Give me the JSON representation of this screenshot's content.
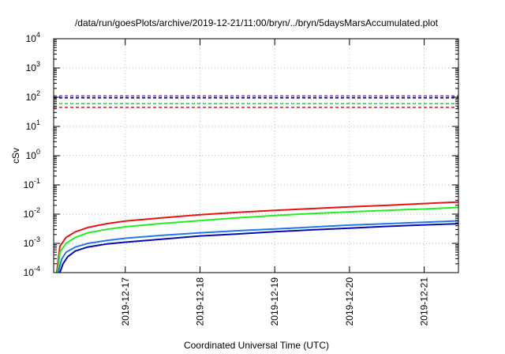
{
  "chart_data": {
    "type": "line",
    "title": "/data/run/goesPlots/archive/2019-12-21/11:00/bryn/../bryn/5daysMarsAccumulated.plot",
    "xlabel": "Coordinated Universal Time (UTC)",
    "ylabel": "cSv",
    "yscale": "log",
    "ylim": [
      0.0001,
      10000
    ],
    "xlim": [
      "2019-12-16T01:00",
      "2019-12-21T11:00"
    ],
    "grid": true,
    "y_tick_labels": [
      {
        "base": "10",
        "exp": "-4"
      },
      {
        "base": "10",
        "exp": "-3"
      },
      {
        "base": "10",
        "exp": "-2"
      },
      {
        "base": "10",
        "exp": "-1"
      },
      {
        "base": "10",
        "exp": "0"
      },
      {
        "base": "10",
        "exp": "1"
      },
      {
        "base": "10",
        "exp": "2"
      },
      {
        "base": "10",
        "exp": "3"
      },
      {
        "base": "10",
        "exp": "4"
      }
    ],
    "x_tick_labels": [
      "2019-12-17",
      "2019-12-18",
      "2019-12-19",
      "2019-12-20",
      "2019-12-21"
    ],
    "x_tick_values": [
      "2019-12-17T00:00",
      "2019-12-18T00:00",
      "2019-12-19T00:00",
      "2019-12-20T00:00",
      "2019-12-21T00:00"
    ],
    "threshold_lines": [
      {
        "color": "#8a2be2",
        "value": 110
      },
      {
        "color": "#0000cd",
        "value": 95
      },
      {
        "color": "#22dd22",
        "value": 60
      },
      {
        "color": "#ee2222",
        "value": 45
      }
    ],
    "series": [
      {
        "color": "#ee1111",
        "x": [
          "2019-12-16T02:00",
          "2019-12-16T03:00",
          "2019-12-16T05:00",
          "2019-12-16T08:00",
          "2019-12-16T12:00",
          "2019-12-16T18:00",
          "2019-12-17T00:00",
          "2019-12-17T12:00",
          "2019-12-18T00:00",
          "2019-12-18T12:00",
          "2019-12-19T00:00",
          "2019-12-19T12:00",
          "2019-12-20T00:00",
          "2019-12-20T12:00",
          "2019-12-21T00:00",
          "2019-12-21T11:00"
        ],
        "values": [
          0.0001,
          0.0008,
          0.0016,
          0.0025,
          0.0035,
          0.0047,
          0.0058,
          0.0075,
          0.0095,
          0.0115,
          0.0135,
          0.0155,
          0.0178,
          0.02,
          0.023,
          0.026
        ]
      },
      {
        "color": "#22ee22",
        "x": [
          "2019-12-16T02:15",
          "2019-12-16T03:00",
          "2019-12-16T05:00",
          "2019-12-16T08:00",
          "2019-12-16T12:00",
          "2019-12-16T18:00",
          "2019-12-17T00:00",
          "2019-12-17T12:00",
          "2019-12-18T00:00",
          "2019-12-18T12:00",
          "2019-12-19T00:00",
          "2019-12-19T12:00",
          "2019-12-20T00:00",
          "2019-12-20T12:00",
          "2019-12-21T00:00",
          "2019-12-21T11:00"
        ],
        "values": [
          0.0001,
          0.0005,
          0.001,
          0.0016,
          0.0023,
          0.003,
          0.0037,
          0.0048,
          0.006,
          0.0075,
          0.009,
          0.0105,
          0.012,
          0.0135,
          0.015,
          0.017
        ]
      },
      {
        "color": "#1e7be8",
        "x": [
          "2019-12-16T02:30",
          "2019-12-16T03:30",
          "2019-12-16T05:00",
          "2019-12-16T08:00",
          "2019-12-16T12:00",
          "2019-12-16T18:00",
          "2019-12-17T00:00",
          "2019-12-17T12:00",
          "2019-12-18T00:00",
          "2019-12-18T12:00",
          "2019-12-19T00:00",
          "2019-12-19T12:00",
          "2019-12-20T00:00",
          "2019-12-20T12:00",
          "2019-12-21T00:00",
          "2019-12-21T11:00"
        ],
        "values": [
          0.0001,
          0.00028,
          0.0005,
          0.00075,
          0.001,
          0.00125,
          0.0015,
          0.0019,
          0.0023,
          0.0027,
          0.0031,
          0.0036,
          0.0042,
          0.0047,
          0.0053,
          0.0059
        ]
      },
      {
        "color": "#0a0ab4",
        "x": [
          "2019-12-16T03:00",
          "2019-12-16T04:00",
          "2019-12-16T05:30",
          "2019-12-16T08:00",
          "2019-12-16T12:00",
          "2019-12-16T18:00",
          "2019-12-17T00:00",
          "2019-12-17T12:00",
          "2019-12-18T00:00",
          "2019-12-18T12:00",
          "2019-12-19T00:00",
          "2019-12-19T12:00",
          "2019-12-20T00:00",
          "2019-12-20T12:00",
          "2019-12-21T00:00",
          "2019-12-21T11:00"
        ],
        "values": [
          0.0001,
          0.0002,
          0.00035,
          0.00055,
          0.00075,
          0.00095,
          0.0011,
          0.0014,
          0.0018,
          0.0021,
          0.0025,
          0.0029,
          0.0033,
          0.0038,
          0.0043,
          0.0047
        ]
      }
    ]
  }
}
